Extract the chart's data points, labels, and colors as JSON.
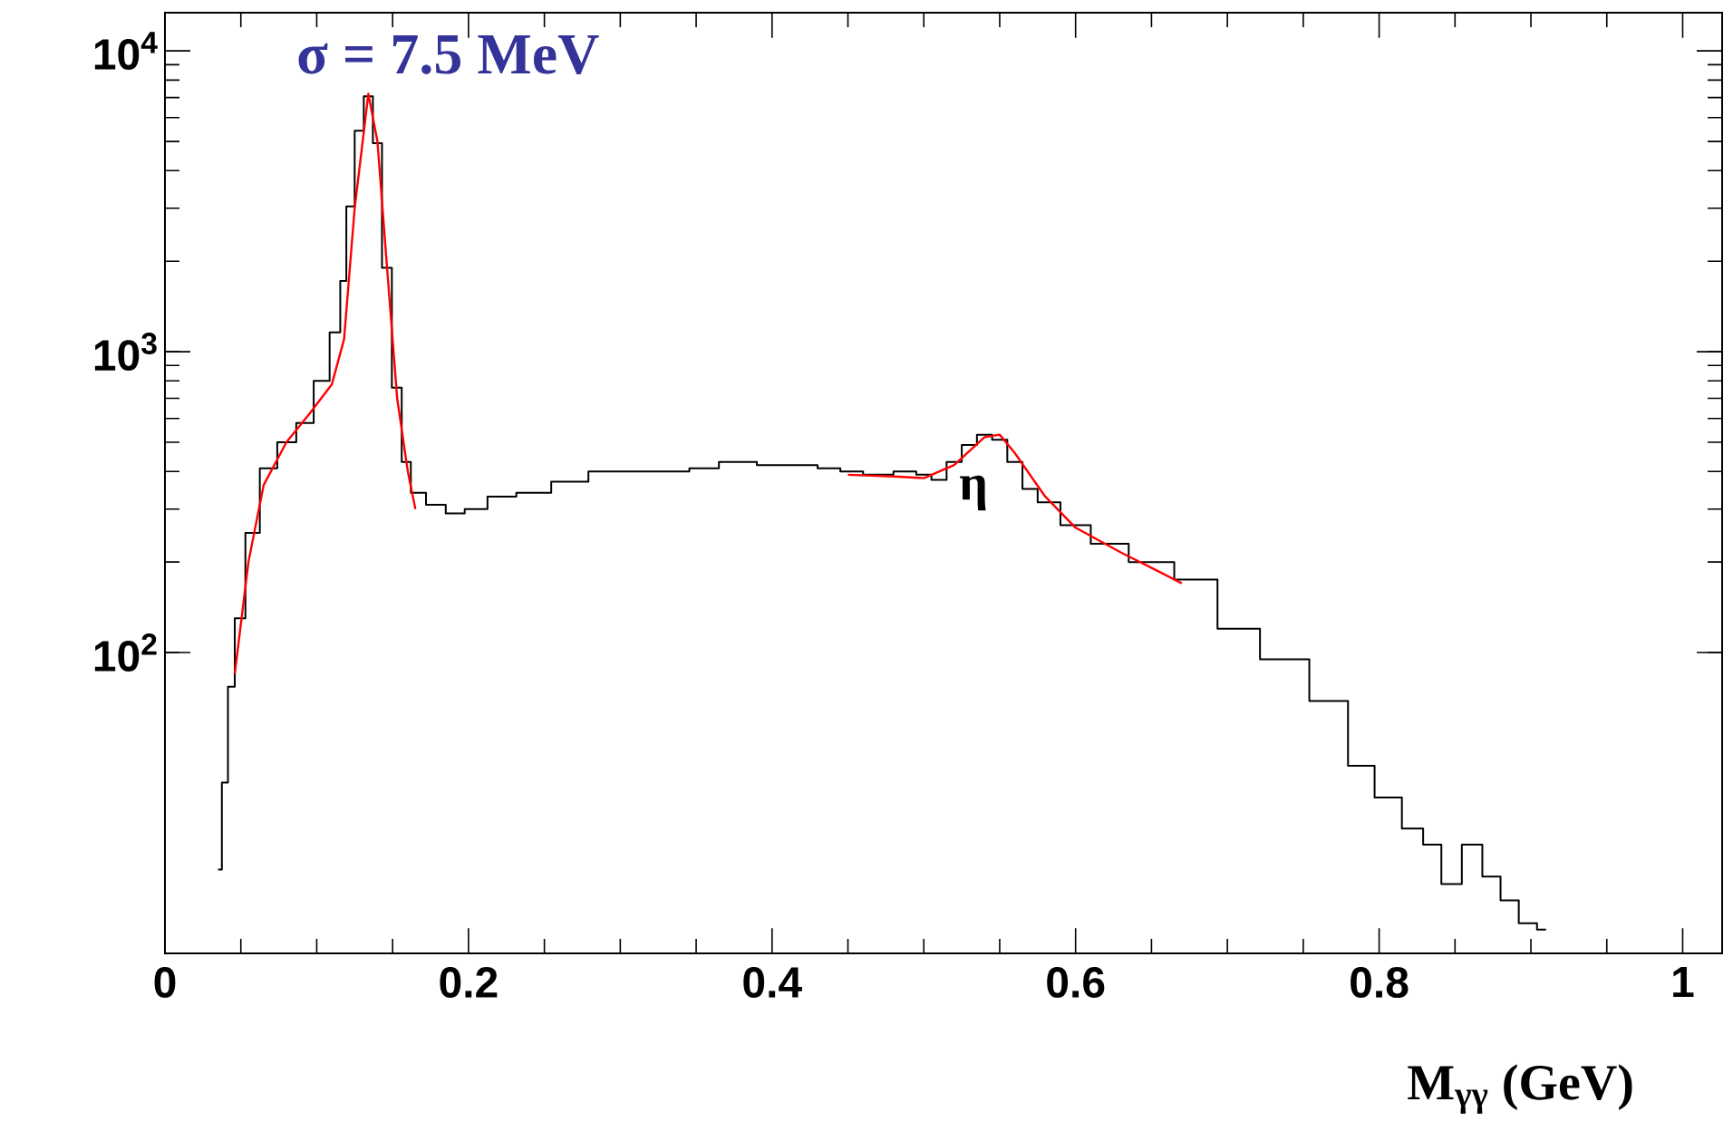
{
  "chart_data": {
    "type": "step",
    "xlabel": "M$_{γγ}$ (GeV)",
    "log": "y",
    "marker": "none",
    "grid": false,
    "xlim": [
      0,
      1.026
    ],
    "ylim": [
      10,
      13400
    ],
    "xticks": [
      0,
      0.2,
      0.4,
      0.6,
      0.8,
      1
    ],
    "yticks": [
      {
        "value": 100,
        "label": "10$^{2}$"
      },
      {
        "value": 1000,
        "label": "10$^{3}$"
      },
      {
        "value": 10000,
        "label": "10$^{4}$"
      }
    ],
    "annotations": [
      "σ = 7.5 MeV",
      "η"
    ],
    "series": [
      {
        "color": "#000000",
        "x": [
          0.035,
          0.04,
          0.043,
          0.049,
          0.057,
          0.068,
          0.08,
          0.093,
          0.103,
          0.114,
          0.117,
          0.122,
          0.128,
          0.134,
          0.14,
          0.146,
          0.153,
          0.159,
          0.165,
          0.179,
          0.191,
          0.204,
          0.221,
          0.242,
          0.267,
          0.291,
          0.3,
          0.341,
          0.35,
          0.38,
          0.4,
          0.42,
          0.44,
          0.45,
          0.47,
          0.49,
          0.5,
          0.51,
          0.52,
          0.53,
          0.54,
          0.55,
          0.56,
          0.57,
          0.58,
          0.6,
          0.62,
          0.65,
          0.68,
          0.707,
          0.736,
          0.772,
          0.787,
          0.807,
          0.823,
          0.835,
          0.847,
          0.862,
          0.874,
          0.886,
          0.898,
          0.91
        ],
        "values": [
          19,
          37,
          77,
          130,
          250,
          410,
          500,
          580,
          800,
          1160,
          1720,
          3040,
          5430,
          7070,
          4930,
          1900,
          760,
          430,
          340,
          310,
          290,
          300,
          330,
          340,
          370,
          400,
          400,
          400,
          410,
          430,
          420,
          420,
          410,
          400,
          390,
          400,
          390,
          375,
          430,
          490,
          530,
          510,
          430,
          350,
          316,
          265,
          230,
          200,
          175,
          120,
          95,
          69,
          42,
          33,
          26,
          23,
          17,
          23,
          18,
          15,
          12.6,
          12
        ]
      },
      {
        "type": "line",
        "color": "#ff0000",
        "x": [
          0.046,
          0.055,
          0.065,
          0.08,
          0.095,
          0.11,
          0.118,
          0.125,
          0.134,
          0.14,
          0.146,
          0.153,
          0.16,
          0.165
        ],
        "values": [
          85,
          200,
          360,
          500,
          620,
          780,
          1100,
          3000,
          7200,
          5000,
          2000,
          700,
          400,
          300
        ]
      },
      {
        "type": "line",
        "color": "#ff0000",
        "x": [
          0.45,
          0.48,
          0.5,
          0.52,
          0.54,
          0.55,
          0.56,
          0.58,
          0.6,
          0.63,
          0.67
        ],
        "values": [
          390,
          385,
          380,
          420,
          520,
          530,
          460,
          330,
          260,
          215,
          170
        ]
      }
    ]
  }
}
